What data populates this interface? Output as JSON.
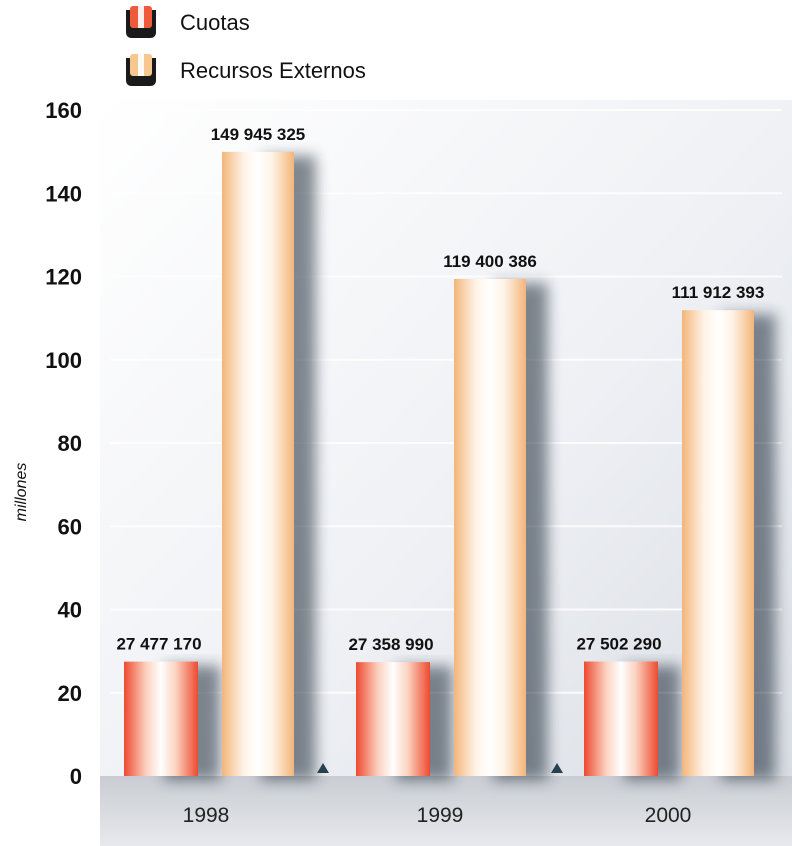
{
  "chart_data": {
    "type": "bar",
    "title": "",
    "xlabel": "",
    "ylabel": "millones",
    "ylim": [
      0,
      160
    ],
    "yticks": [
      0,
      20,
      40,
      60,
      80,
      100,
      120,
      140,
      160
    ],
    "categories": [
      "1998",
      "1999",
      "2000"
    ],
    "legend": "top-left",
    "series": [
      {
        "name": "Cuotas",
        "values": [
          27.47717,
          27.35899,
          27.50229
        ],
        "labels": [
          "27 477 170",
          "27 358 990",
          "27 502 290"
        ],
        "color": "#ef5a3c"
      },
      {
        "name": "Recursos Externos",
        "values": [
          149.945325,
          119.400386,
          111.912393
        ],
        "labels": [
          "149 945 325",
          "119 400 386",
          "111 912 393"
        ],
        "color": "#f6c890"
      }
    ]
  }
}
